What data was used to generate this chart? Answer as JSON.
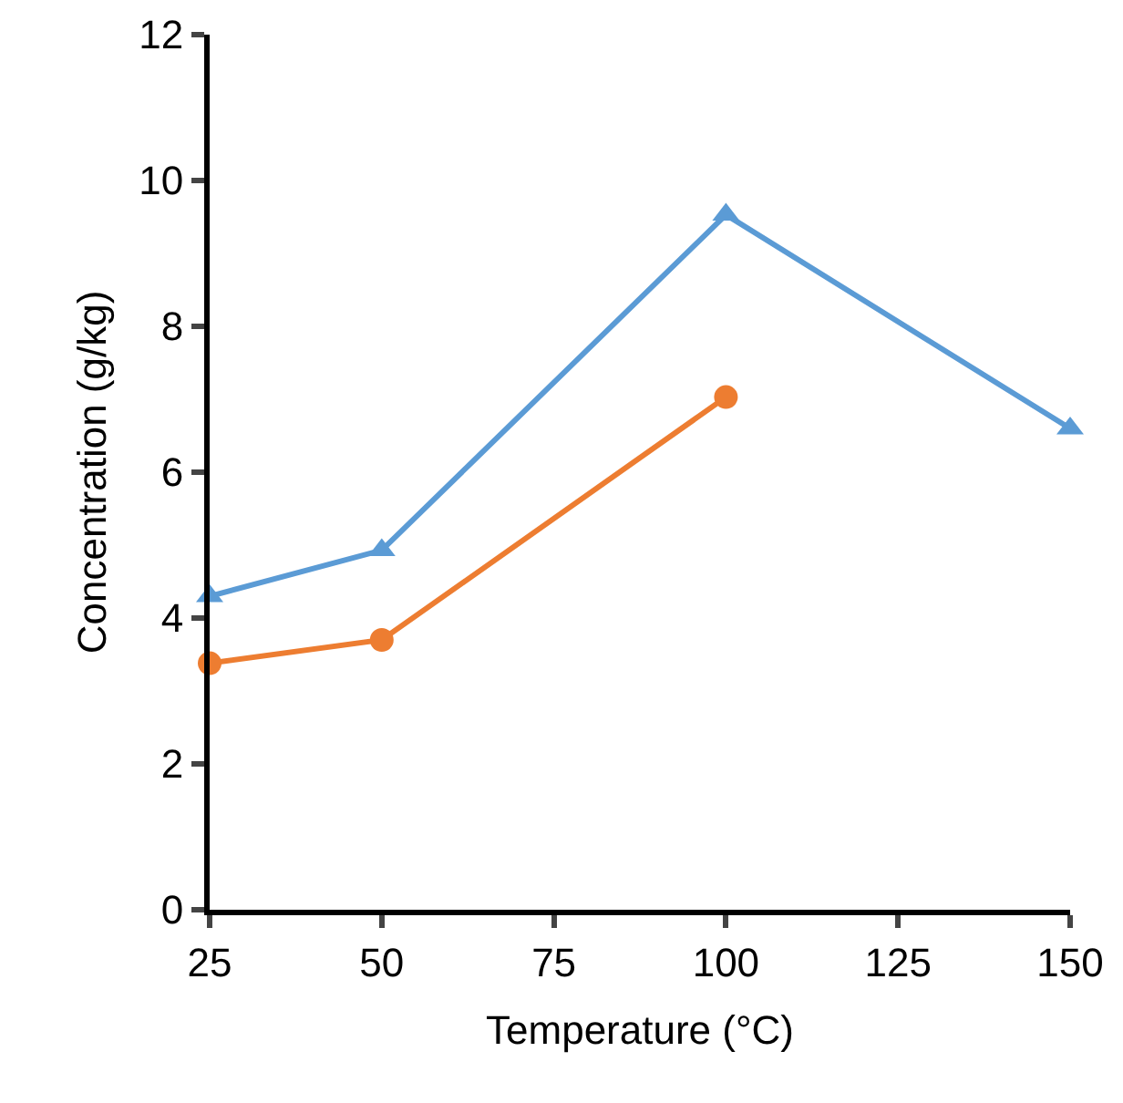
{
  "chart_data": {
    "type": "line",
    "xlabel": "Temperature (°C)",
    "ylabel": "Concentration (g/kg)",
    "x": [
      25,
      50,
      100,
      150
    ],
    "series": [
      {
        "color": "#5b9bd5",
        "marker": "triangle",
        "values": [
          4.3,
          4.93,
          9.53,
          6.6
        ]
      },
      {
        "color": "#ed7d31",
        "marker": "circle",
        "values": [
          3.38,
          3.7,
          7.03,
          null
        ]
      }
    ],
    "xlim": [
      25,
      150
    ],
    "xticks": [
      25,
      50,
      75,
      100,
      125,
      150
    ],
    "ylim": [
      0,
      12
    ],
    "yticks": [
      0,
      2,
      4,
      6,
      8,
      10,
      12
    ],
    "grid": false,
    "line_style": "solid"
  }
}
